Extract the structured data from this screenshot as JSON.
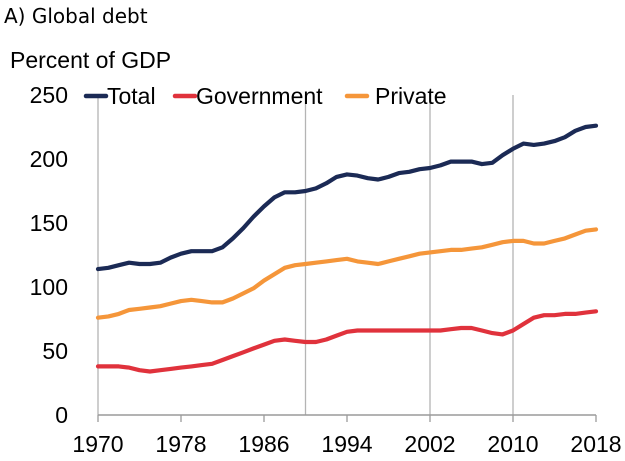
{
  "panel_title": "A) Global debt",
  "colors": {
    "total": "#1b2a55",
    "government": "#e0323c",
    "private": "#f5963a",
    "vline": "#b4b4b4",
    "axis": "#9a9a9a"
  },
  "chart_data": {
    "type": "line",
    "title": "A) Global debt",
    "ylabel": "Percent of GDP",
    "xlabel": "",
    "xlim": [
      1970,
      2018
    ],
    "ylim": [
      0,
      250
    ],
    "yticks": [
      0,
      50,
      100,
      150,
      200,
      250
    ],
    "xticks": [
      1970,
      1978,
      1986,
      1994,
      2002,
      2010,
      2018
    ],
    "vlines": [
      1970,
      1990,
      2002,
      2010
    ],
    "grid": false,
    "legend": "top",
    "x": [
      1970,
      1971,
      1972,
      1973,
      1974,
      1975,
      1976,
      1977,
      1978,
      1979,
      1980,
      1981,
      1982,
      1983,
      1984,
      1985,
      1986,
      1987,
      1988,
      1989,
      1990,
      1991,
      1992,
      1993,
      1994,
      1995,
      1996,
      1997,
      1998,
      1999,
      2000,
      2001,
      2002,
      2003,
      2004,
      2005,
      2006,
      2007,
      2008,
      2009,
      2010,
      2011,
      2012,
      2013,
      2014,
      2015,
      2016,
      2017,
      2018
    ],
    "series": [
      {
        "name": "Total",
        "color": "#1b2a55",
        "values": [
          114,
          115,
          117,
          119,
          118,
          118,
          119,
          123,
          126,
          128,
          128,
          128,
          131,
          138,
          146,
          155,
          163,
          170,
          174,
          174,
          175,
          177,
          181,
          186,
          188,
          187,
          185,
          184,
          186,
          189,
          190,
          192,
          193,
          195,
          198,
          198,
          198,
          196,
          197,
          203,
          208,
          212,
          211,
          212,
          214,
          217,
          222,
          225,
          226
        ]
      },
      {
        "name": "Government",
        "color": "#e0323c",
        "values": [
          38,
          38,
          38,
          37,
          35,
          34,
          35,
          36,
          37,
          38,
          39,
          40,
          43,
          46,
          49,
          52,
          55,
          58,
          59,
          58,
          57,
          57,
          59,
          62,
          65,
          66,
          66,
          66,
          66,
          66,
          66,
          66,
          66,
          66,
          67,
          68,
          68,
          66,
          64,
          63,
          66,
          71,
          76,
          78,
          78,
          79,
          79,
          80,
          81
        ]
      },
      {
        "name": "Private",
        "color": "#f5963a",
        "values": [
          76,
          77,
          79,
          82,
          83,
          84,
          85,
          87,
          89,
          90,
          89,
          88,
          88,
          91,
          95,
          99,
          105,
          110,
          115,
          117,
          118,
          119,
          120,
          121,
          122,
          120,
          119,
          118,
          120,
          122,
          124,
          126,
          127,
          128,
          129,
          129,
          130,
          131,
          133,
          135,
          136,
          136,
          134,
          134,
          136,
          138,
          141,
          144,
          145
        ]
      }
    ]
  }
}
